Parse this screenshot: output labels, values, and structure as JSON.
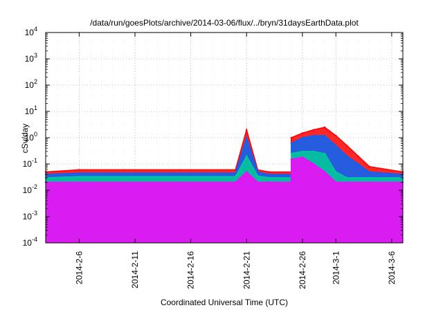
{
  "chart_data": {
    "type": "line",
    "title": "/data/run/goesPlots/archive/2014-03-06/flux/../bryn/31daysEarthData.plot",
    "xlabel": "Coordinated Universal Time (UTC)",
    "ylabel": "cSv/day",
    "yscale": "log",
    "ylim": [
      0.0001,
      10000
    ],
    "xlim": [
      "2014-02-03",
      "2014-03-07"
    ],
    "grid": true,
    "legend": "none",
    "y_ticks": [
      {
        "base": "10",
        "exp": "-4"
      },
      {
        "base": "10",
        "exp": "-3"
      },
      {
        "base": "10",
        "exp": "-2"
      },
      {
        "base": "10",
        "exp": "-1"
      },
      {
        "base": "10",
        "exp": "0"
      },
      {
        "base": "10",
        "exp": "1"
      },
      {
        "base": "10",
        "exp": "2"
      },
      {
        "base": "10",
        "exp": "3"
      },
      {
        "base": "10",
        "exp": "4"
      }
    ],
    "x_ticks": [
      "2014-2-6",
      "2014-2-11",
      "2014-2-16",
      "2014-2-21",
      "2014-2-26",
      "2014-3-1",
      "2014-3-6"
    ],
    "series": [
      {
        "color": "#ff0000",
        "x": [
          "2014-02-03",
          "2014-02-06",
          "2014-02-10",
          "2014-02-15",
          "2014-02-20",
          "2014-02-21",
          "2014-02-22",
          "2014-02-23",
          "2014-02-25",
          "2014-02-25",
          "2014-02-26",
          "2014-02-27",
          "2014-02-28",
          "2014-03-01",
          "2014-03-02",
          "2014-03-03",
          "2014-03-04",
          "2014-03-07"
        ],
        "y": [
          0.05,
          0.06,
          0.06,
          0.06,
          0.06,
          2.0,
          0.06,
          0.05,
          0.05,
          1.0,
          1.5,
          2.0,
          2.5,
          1.2,
          0.5,
          0.2,
          0.08,
          0.05
        ]
      },
      {
        "color": "#0066ff",
        "x": [
          "2014-02-03",
          "2014-02-06",
          "2014-02-10",
          "2014-02-15",
          "2014-02-20",
          "2014-02-21",
          "2014-02-22",
          "2014-02-23",
          "2014-02-25",
          "2014-02-25",
          "2014-02-26",
          "2014-02-27",
          "2014-02-28",
          "2014-03-01",
          "2014-03-02",
          "2014-03-03",
          "2014-03-04",
          "2014-03-07"
        ],
        "y": [
          0.04,
          0.045,
          0.045,
          0.045,
          0.045,
          1.0,
          0.05,
          0.04,
          0.04,
          0.6,
          1.0,
          1.2,
          1.2,
          0.5,
          0.2,
          0.1,
          0.05,
          0.04
        ]
      },
      {
        "color": "#00cc99",
        "x": [
          "2014-02-03",
          "2014-02-06",
          "2014-02-10",
          "2014-02-15",
          "2014-02-20",
          "2014-02-21",
          "2014-02-22",
          "2014-02-23",
          "2014-02-25",
          "2014-02-25",
          "2014-02-26",
          "2014-02-27",
          "2014-02-28",
          "2014-03-01",
          "2014-03-02",
          "2014-03-03",
          "2014-03-04",
          "2014-03-07"
        ],
        "y": [
          0.03,
          0.033,
          0.033,
          0.033,
          0.033,
          0.2,
          0.035,
          0.03,
          0.03,
          0.25,
          0.3,
          0.3,
          0.25,
          0.05,
          0.03,
          0.03,
          0.03,
          0.03
        ]
      },
      {
        "color": "#ff00ff",
        "x": [
          "2014-02-03",
          "2014-02-06",
          "2014-02-10",
          "2014-02-15",
          "2014-02-20",
          "2014-02-21",
          "2014-02-22",
          "2014-02-23",
          "2014-02-25",
          "2014-02-25",
          "2014-02-26",
          "2014-02-27",
          "2014-02-28",
          "2014-03-01",
          "2014-03-02",
          "2014-03-03",
          "2014-03-04",
          "2014-03-07"
        ],
        "y": [
          0.02,
          0.02,
          0.02,
          0.02,
          0.02,
          0.05,
          0.02,
          0.02,
          0.02,
          0.15,
          0.18,
          0.1,
          0.05,
          0.02,
          0.02,
          0.02,
          0.02,
          0.02
        ]
      }
    ]
  }
}
